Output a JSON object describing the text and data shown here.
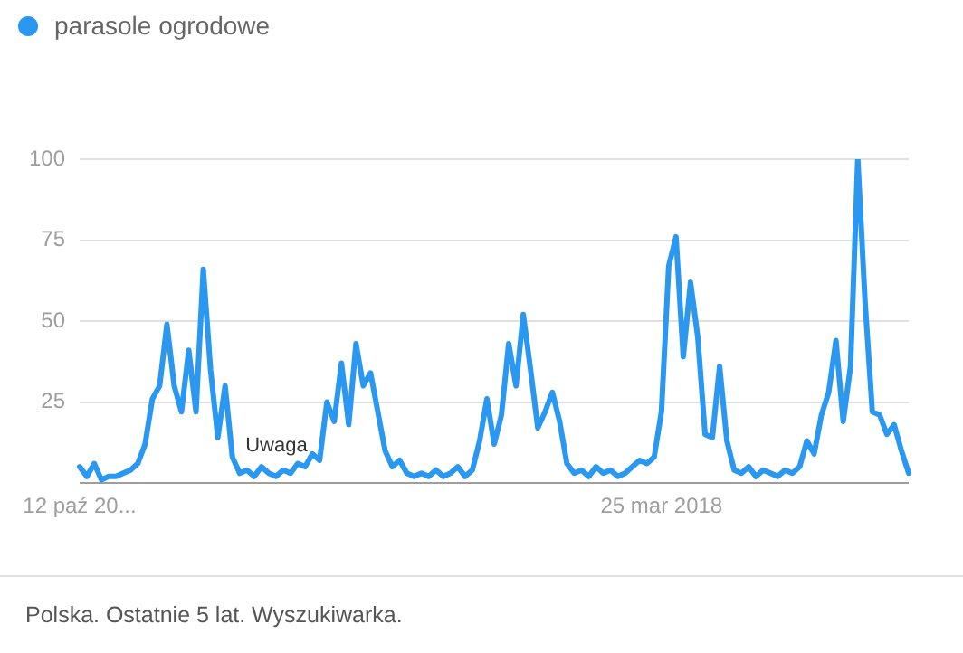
{
  "chart_data": {
    "type": "line",
    "categories": [
      "12 paź 20...",
      null,
      null,
      null,
      null,
      null,
      null,
      null,
      null,
      null,
      null,
      null,
      null,
      null,
      null,
      null,
      null,
      null,
      null,
      null,
      null,
      null,
      null,
      null,
      null,
      null,
      null,
      null,
      null,
      null,
      null,
      null,
      null,
      null,
      null,
      null,
      null,
      null,
      null,
      null,
      null,
      null,
      null,
      null,
      null,
      null,
      null,
      null,
      null,
      null,
      null,
      null,
      null,
      null,
      null,
      null,
      null,
      null,
      null,
      null,
      null,
      null,
      null,
      null,
      null,
      null,
      null,
      null,
      null,
      null,
      null,
      null,
      null,
      null,
      null,
      null,
      null,
      null,
      null,
      null,
      "25 mar 2018",
      null,
      null,
      null,
      null,
      null,
      null,
      null,
      null,
      null,
      null,
      null,
      null,
      null,
      null,
      null,
      null,
      null,
      null,
      null,
      null,
      null,
      null,
      null,
      null,
      null,
      null,
      null,
      null,
      null,
      null,
      null,
      null,
      null,
      null
    ],
    "series": [
      {
        "name": "parasole ogrodowe",
        "color": "#2a97f0",
        "values": [
          5,
          2,
          6,
          1,
          2,
          2,
          3,
          4,
          6,
          12,
          26,
          30,
          49,
          30,
          22,
          41,
          22,
          66,
          35,
          14,
          30,
          8,
          3,
          4,
          2,
          5,
          3,
          2,
          4,
          3,
          6,
          5,
          9,
          7,
          25,
          19,
          37,
          18,
          43,
          30,
          34,
          22,
          10,
          5,
          7,
          3,
          2,
          3,
          2,
          4,
          2,
          3,
          5,
          2,
          4,
          13,
          26,
          12,
          21,
          43,
          30,
          52,
          35,
          17,
          22,
          28,
          19,
          6,
          3,
          4,
          2,
          5,
          3,
          4,
          2,
          3,
          5,
          7,
          6,
          8,
          22,
          67,
          76,
          39,
          62,
          45,
          15,
          14,
          36,
          13,
          4,
          3,
          5,
          2,
          4,
          3,
          2,
          4,
          3,
          5,
          13,
          9,
          21,
          28,
          44,
          19,
          36,
          100,
          56,
          22,
          21,
          15,
          18,
          10,
          3
        ]
      }
    ],
    "ylim": [
      0,
      100
    ],
    "yticks": [
      {
        "value": 0,
        "label": null
      },
      25,
      50,
      75,
      100
    ],
    "grid": "y",
    "legend": "top left",
    "marker": "none",
    "line_style": "solid",
    "annotations": [
      "Uwaga",
      "Polska. Ostatnie 5 lat. Wyszukiwarka."
    ]
  }
}
